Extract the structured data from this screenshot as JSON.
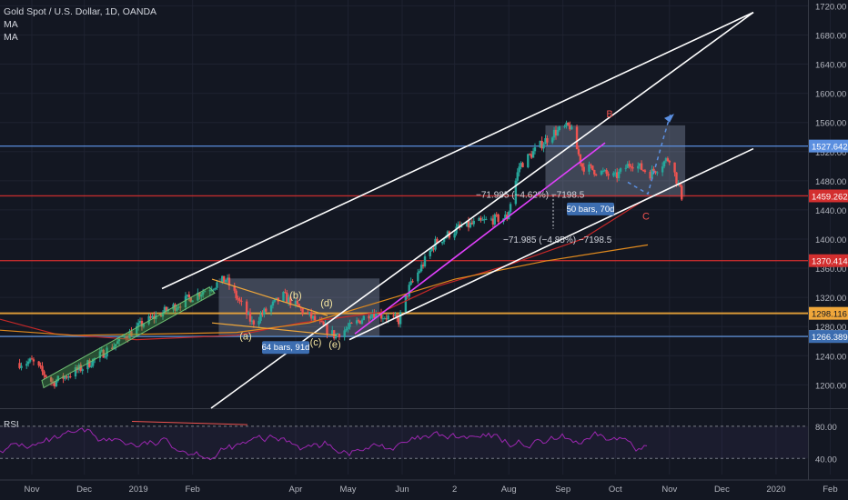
{
  "header": {
    "symbol": "Gold Spot / U.S. Dollar, 1D, OANDA",
    "ma1": "MA",
    "ma2": "MA"
  },
  "rsi": {
    "label": "RSI",
    "levels": [
      80.0,
      40.0
    ]
  },
  "colors": {
    "up": "#26a69a",
    "down": "#ef5350",
    "background": "#131722",
    "grid": "#1e2230"
  },
  "chart_data": {
    "type": "candlestick",
    "title": "Gold Spot / U.S. Dollar, 1D, OANDA",
    "ylim": [
      1168,
      1728
    ],
    "y_ticks": [
      1720,
      1680,
      1640,
      1600,
      1560,
      1520,
      1480,
      1440,
      1400,
      1360,
      1320,
      1280,
      1240,
      1200
    ],
    "x_ticks": [
      "Nov",
      "Dec",
      "2019",
      "Feb",
      "Apr",
      "May",
      "Jun",
      "2",
      "Aug",
      "Sep",
      "Oct",
      "Nov",
      "Dec",
      "2020",
      "Feb"
    ],
    "price_path": [
      [
        "2018-10-25",
        1230
      ],
      [
        "2018-11-01",
        1232
      ],
      [
        "2018-11-13",
        1203
      ],
      [
        "2018-12-01",
        1225
      ],
      [
        "2018-12-20",
        1258
      ],
      [
        "2019-01-04",
        1285
      ],
      [
        "2019-01-31",
        1320
      ],
      [
        "2019-02-20",
        1345
      ],
      [
        "2019-03-07",
        1285
      ],
      [
        "2019-03-25",
        1322
      ],
      [
        "2019-04-23",
        1268
      ],
      [
        "2019-05-03",
        1280
      ],
      [
        "2019-05-14",
        1300
      ],
      [
        "2019-05-30",
        1288
      ],
      [
        "2019-06-05",
        1333
      ],
      [
        "2019-06-20",
        1395
      ],
      [
        "2019-07-03",
        1415
      ],
      [
        "2019-07-19",
        1425
      ],
      [
        "2019-07-31",
        1430
      ],
      [
        "2019-08-07",
        1500
      ],
      [
        "2019-08-26",
        1545
      ],
      [
        "2019-09-05",
        1555
      ],
      [
        "2019-09-12",
        1500
      ],
      [
        "2019-10-01",
        1485
      ],
      [
        "2019-10-10",
        1505
      ],
      [
        "2019-10-21",
        1490
      ],
      [
        "2019-11-01",
        1512
      ],
      [
        "2019-11-08",
        1459
      ]
    ],
    "horizontal_levels": [
      {
        "value": 1527.642,
        "label": "1527.642",
        "color": "#5b8fe0"
      },
      {
        "value": 1459.262,
        "label": "1459.262",
        "color": "#d32f2f"
      },
      {
        "value": 1370.414,
        "label": "1370.414",
        "color": "#d32f2f"
      },
      {
        "value": 1298.116,
        "label": "1298.116",
        "color": "#f0a73a"
      },
      {
        "value": 1266.421,
        "label": "1266.421",
        "color": "#d1d4dc"
      },
      {
        "value": 1266.389,
        "label": "1266.389",
        "color": "#3c6db0"
      }
    ],
    "annotations": {
      "measure1": "−71.985 (−4.62%) −7198.5",
      "measure2": "−71.985 (−4.85%) −7198.5",
      "range1": "64 bars, 91d",
      "range2": "50 bars, 70d",
      "wave_labels": [
        "(a)",
        "(b)",
        "(c)",
        "(d)",
        "(e)",
        "B",
        "C"
      ]
    },
    "rsi_ylim": [
      20,
      90
    ]
  }
}
